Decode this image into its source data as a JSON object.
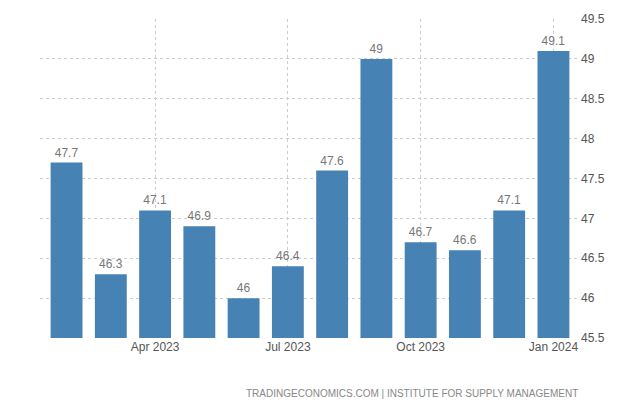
{
  "chart_data": {
    "type": "bar",
    "categories": [
      null,
      null,
      "Apr 2023",
      null,
      null,
      "Jul 2023",
      null,
      null,
      "Oct 2023",
      null,
      null,
      "Jan 2024"
    ],
    "values": [
      47.7,
      46.3,
      47.1,
      46.9,
      46,
      46.4,
      47.6,
      49,
      46.7,
      46.6,
      47.1,
      49.1
    ],
    "color": "#4682b4",
    "ylim": [
      45.5,
      49.5
    ],
    "yticks": [
      45.5,
      46,
      46.5,
      47,
      47.5,
      48,
      48.5,
      49,
      49.5
    ],
    "grid": true,
    "data_labels": true,
    "source": "TRADINGECONOMICS.COM | INSTITUTE FOR SUPPLY MANAGEMENT"
  }
}
